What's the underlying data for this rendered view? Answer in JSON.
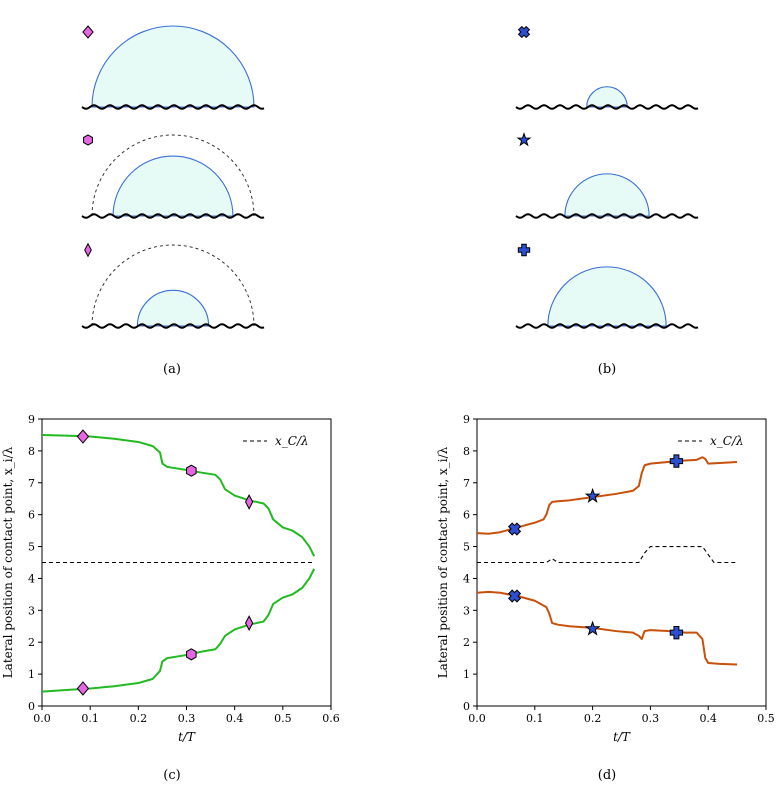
{
  "captions": {
    "a": "(a)",
    "b": "(b)",
    "c": "(c)",
    "d": "(d)"
  },
  "colors": {
    "droplet_fill": "#e6fbf6",
    "droplet_edge": "#3a6fd6",
    "green": "#22b922",
    "orange": "#c8500a",
    "magenta": "#e466e0",
    "blue_marker": "#2b4fd0"
  },
  "schematics": {
    "a": [
      {
        "marker": "diamond",
        "solid_radius": 1.0,
        "dashed_radius": null
      },
      {
        "marker": "hexagon",
        "solid_radius": 0.74,
        "dashed_radius": 1.0
      },
      {
        "marker": "thin-diamond",
        "solid_radius": 0.44,
        "dashed_radius": 1.0
      }
    ],
    "b": [
      {
        "marker": "x",
        "solid_radius": 0.25,
        "dashed_radius": null
      },
      {
        "marker": "star",
        "solid_radius": 0.52,
        "dashed_radius": 0.25
      },
      {
        "marker": "plus",
        "solid_radius": 0.73,
        "dashed_radius": 0.25
      }
    ]
  },
  "chart_data": [
    {
      "type": "line",
      "panel": "c",
      "xlabel": "t/T",
      "ylabel": "Lateral position of contact point, x_i/λ",
      "xlim": [
        0,
        0.6
      ],
      "ylim": [
        0,
        9
      ],
      "xticks": [
        "0.0",
        "0.1",
        "0.2",
        "0.3",
        "0.4",
        "0.5",
        "0.6"
      ],
      "yticks": [
        "0",
        "1",
        "2",
        "3",
        "4",
        "5",
        "6",
        "7",
        "8",
        "9"
      ],
      "legend": {
        "label": "x_C/λ",
        "position": "top-right",
        "style": "dashed"
      },
      "series": [
        {
          "name": "upper contact point",
          "color": "green",
          "x": [
            0,
            0.05,
            0.1,
            0.15,
            0.2,
            0.23,
            0.245,
            0.25,
            0.26,
            0.28,
            0.3,
            0.33,
            0.36,
            0.37,
            0.38,
            0.4,
            0.43,
            0.46,
            0.47,
            0.48,
            0.5,
            0.52,
            0.54,
            0.555,
            0.565
          ],
          "y": [
            8.5,
            8.48,
            8.45,
            8.38,
            8.28,
            8.15,
            7.95,
            7.6,
            7.5,
            7.45,
            7.4,
            7.32,
            7.25,
            7.1,
            6.8,
            6.6,
            6.45,
            6.35,
            6.2,
            5.85,
            5.6,
            5.5,
            5.3,
            5.0,
            4.7
          ]
        },
        {
          "name": "lower contact point",
          "color": "green",
          "x": [
            0,
            0.05,
            0.1,
            0.15,
            0.2,
            0.23,
            0.245,
            0.25,
            0.26,
            0.28,
            0.3,
            0.33,
            0.36,
            0.37,
            0.38,
            0.4,
            0.43,
            0.46,
            0.47,
            0.48,
            0.5,
            0.52,
            0.54,
            0.555,
            0.565
          ],
          "y": [
            0.45,
            0.5,
            0.55,
            0.62,
            0.72,
            0.85,
            1.1,
            1.4,
            1.5,
            1.55,
            1.6,
            1.7,
            1.78,
            1.95,
            2.2,
            2.4,
            2.55,
            2.65,
            2.85,
            3.2,
            3.4,
            3.5,
            3.7,
            4.0,
            4.3
          ]
        },
        {
          "name": "x_C/λ",
          "color": "black",
          "dashed": true,
          "x": [
            0,
            0.565
          ],
          "y": [
            4.5,
            4.5
          ]
        }
      ],
      "markers": [
        {
          "shape": "diamond",
          "x": 0.085,
          "y": 8.45
        },
        {
          "shape": "hexagon",
          "x": 0.31,
          "y": 7.38
        },
        {
          "shape": "thin-diamond",
          "x": 0.43,
          "y": 6.4
        },
        {
          "shape": "diamond",
          "x": 0.085,
          "y": 0.55
        },
        {
          "shape": "hexagon",
          "x": 0.31,
          "y": 1.62
        },
        {
          "shape": "thin-diamond",
          "x": 0.43,
          "y": 2.6
        }
      ]
    },
    {
      "type": "line",
      "panel": "d",
      "xlabel": "t/T",
      "ylabel": "Lateral position of contact point, x_i/λ",
      "xlim": [
        0,
        0.5
      ],
      "ylim": [
        0,
        9
      ],
      "xticks": [
        "0.0",
        "0.1",
        "0.2",
        "0.3",
        "0.4",
        "0.5"
      ],
      "yticks": [
        "0",
        "1",
        "2",
        "3",
        "4",
        "5",
        "6",
        "7",
        "8",
        "9"
      ],
      "legend": {
        "label": "x_C/λ",
        "position": "top-right",
        "style": "dashed"
      },
      "series": [
        {
          "name": "upper contact point",
          "color": "orange",
          "x": [
            0,
            0.02,
            0.04,
            0.06,
            0.08,
            0.1,
            0.115,
            0.12,
            0.125,
            0.13,
            0.14,
            0.16,
            0.2,
            0.24,
            0.27,
            0.28,
            0.285,
            0.29,
            0.3,
            0.33,
            0.36,
            0.38,
            0.39,
            0.395,
            0.4,
            0.42,
            0.45
          ],
          "y": [
            5.42,
            5.4,
            5.45,
            5.55,
            5.65,
            5.75,
            5.85,
            6.0,
            6.3,
            6.4,
            6.42,
            6.45,
            6.55,
            6.65,
            6.75,
            6.9,
            7.3,
            7.55,
            7.6,
            7.65,
            7.7,
            7.72,
            7.8,
            7.75,
            7.6,
            7.62,
            7.65
          ]
        },
        {
          "name": "lower contact point",
          "color": "orange",
          "x": [
            0,
            0.02,
            0.04,
            0.07,
            0.1,
            0.12,
            0.125,
            0.13,
            0.14,
            0.16,
            0.2,
            0.24,
            0.27,
            0.28,
            0.285,
            0.29,
            0.3,
            0.33,
            0.36,
            0.38,
            0.39,
            0.395,
            0.4,
            0.42,
            0.45
          ],
          "y": [
            3.55,
            3.58,
            3.55,
            3.45,
            3.3,
            3.1,
            2.9,
            2.6,
            2.55,
            2.5,
            2.45,
            2.35,
            2.3,
            2.2,
            2.1,
            2.35,
            2.38,
            2.35,
            2.3,
            2.3,
            2.1,
            1.5,
            1.35,
            1.32,
            1.3
          ]
        },
        {
          "name": "x_C/λ",
          "color": "black",
          "dashed": true,
          "x": [
            0,
            0.12,
            0.13,
            0.14,
            0.28,
            0.29,
            0.3,
            0.39,
            0.4,
            0.41,
            0.45
          ],
          "y": [
            4.5,
            4.5,
            4.62,
            4.5,
            4.5,
            4.8,
            5.0,
            5.0,
            4.75,
            4.5,
            4.5
          ]
        }
      ],
      "markers": [
        {
          "shape": "x",
          "x": 0.065,
          "y": 5.55
        },
        {
          "shape": "star",
          "x": 0.2,
          "y": 6.58
        },
        {
          "shape": "plus",
          "x": 0.345,
          "y": 7.68
        },
        {
          "shape": "x",
          "x": 0.065,
          "y": 3.45
        },
        {
          "shape": "star",
          "x": 0.2,
          "y": 2.42
        },
        {
          "shape": "plus",
          "x": 0.345,
          "y": 2.3
        }
      ]
    }
  ]
}
